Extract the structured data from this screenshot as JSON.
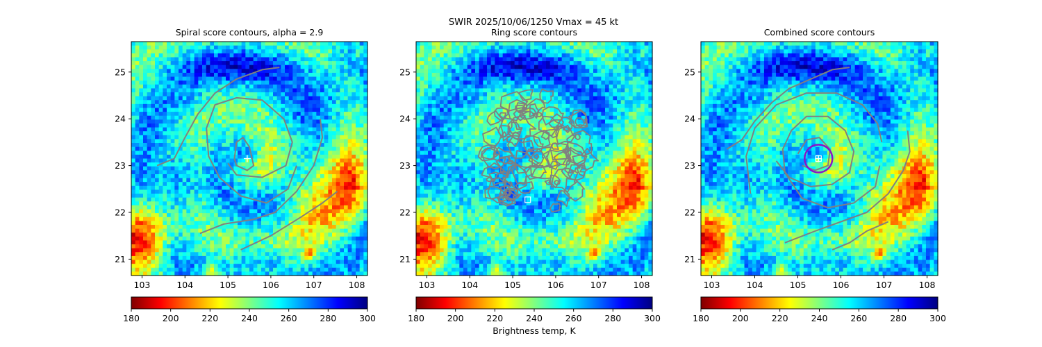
{
  "suptitle": "SWIR  2025/10/06/1250    Vmax = 45 kt",
  "colors": {
    "contour": "#808080",
    "marker": "#ffffff",
    "ring": "#8a14c8"
  },
  "chart_data": [
    {
      "type": "heatmap",
      "title": "Spiral score contours, alpha =  2.9",
      "xlim": [
        102.75,
        108.25
      ],
      "ylim": [
        20.65,
        25.65
      ],
      "xticks": [
        "103",
        "104",
        "105",
        "106",
        "107",
        "108"
      ],
      "yticks": [
        "21",
        "22",
        "23",
        "24",
        "25"
      ],
      "colorbar": {
        "range": [
          180,
          300
        ],
        "ticks": [
          "180",
          "200",
          "220",
          "240",
          "260",
          "280",
          "300"
        ],
        "label": "",
        "cmap": "jet_r"
      },
      "center_marker": {
        "shape": "plus",
        "lon": 105.45,
        "lat": 23.15
      },
      "contours": [
        [
          [
            103.35,
            23.0
          ],
          [
            103.75,
            23.15
          ],
          [
            104.0,
            23.6
          ],
          [
            104.3,
            24.1
          ],
          [
            104.7,
            24.55
          ],
          [
            105.2,
            24.85
          ],
          [
            105.8,
            25.05
          ],
          [
            106.2,
            25.1
          ]
        ],
        [
          [
            105.0,
            23.05
          ],
          [
            105.2,
            22.8
          ],
          [
            105.8,
            22.75
          ],
          [
            106.35,
            23.0
          ],
          [
            106.5,
            23.5
          ],
          [
            106.3,
            24.0
          ],
          [
            105.8,
            24.4
          ],
          [
            105.2,
            24.45
          ],
          [
            104.7,
            24.3
          ],
          [
            104.5,
            23.8
          ],
          [
            104.55,
            23.2
          ],
          [
            104.8,
            22.75
          ],
          [
            105.3,
            22.35
          ],
          [
            105.9,
            22.2
          ],
          [
            106.4,
            22.5
          ],
          [
            106.6,
            23.0
          ]
        ],
        [
          [
            105.15,
            23.15
          ],
          [
            105.2,
            23.5
          ],
          [
            105.35,
            23.6
          ],
          [
            105.5,
            23.4
          ],
          [
            105.6,
            23.0
          ],
          [
            105.45,
            22.9
          ],
          [
            105.2,
            23.0
          ],
          [
            105.15,
            23.15
          ]
        ],
        [
          [
            104.35,
            21.55
          ],
          [
            104.9,
            21.75
          ],
          [
            105.6,
            21.85
          ],
          [
            106.1,
            22.0
          ],
          [
            106.6,
            22.45
          ],
          [
            107.0,
            23.0
          ],
          [
            107.2,
            23.6
          ],
          [
            107.15,
            24.0
          ]
        ],
        [
          [
            105.3,
            21.2
          ],
          [
            106.0,
            21.5
          ],
          [
            106.7,
            21.9
          ],
          [
            107.2,
            22.2
          ],
          [
            107.55,
            22.45
          ]
        ]
      ]
    },
    {
      "type": "heatmap",
      "title": "Ring score contours",
      "xlim": [
        102.75,
        108.25
      ],
      "ylim": [
        20.65,
        25.65
      ],
      "xticks": [
        "103",
        "104",
        "105",
        "106",
        "107",
        "108"
      ],
      "yticks": [
        "21",
        "22",
        "23",
        "24",
        "25"
      ],
      "colorbar": {
        "range": [
          180,
          300
        ],
        "ticks": [
          "180",
          "200",
          "220",
          "240",
          "260",
          "280",
          "300"
        ],
        "label": "Brightness temp, K",
        "cmap": "jet_r"
      },
      "center_marker": {
        "shape": "square",
        "lon": 105.35,
        "lat": 22.27
      },
      "noisy_contour_field": {
        "lon_range": [
          104.15,
          106.85
        ],
        "lat_range": [
          21.95,
          24.6
        ]
      },
      "contours": []
    },
    {
      "type": "heatmap",
      "title": "Combined score contours",
      "xlim": [
        102.75,
        108.25
      ],
      "ylim": [
        20.65,
        25.65
      ],
      "xticks": [
        "103",
        "104",
        "105",
        "106",
        "107",
        "108"
      ],
      "yticks": [
        "21",
        "22",
        "23",
        "24",
        "25"
      ],
      "colorbar": {
        "range": [
          180,
          300
        ],
        "ticks": [
          "180",
          "200",
          "220",
          "240",
          "260",
          "280",
          "300"
        ],
        "label": "",
        "cmap": "jet_r"
      },
      "center_marker": {
        "shape": "plus-square",
        "lon": 105.48,
        "lat": 23.15
      },
      "ring": {
        "lon": 105.48,
        "lat": 23.15
      },
      "contours": [
        [
          [
            103.35,
            23.35
          ],
          [
            103.7,
            23.55
          ],
          [
            104.0,
            23.95
          ],
          [
            104.4,
            24.35
          ],
          [
            104.8,
            24.65
          ],
          [
            105.3,
            24.85
          ],
          [
            105.8,
            25.05
          ],
          [
            106.2,
            25.1
          ]
        ],
        [
          [
            104.5,
            23.1
          ],
          [
            104.8,
            22.75
          ],
          [
            105.3,
            22.55
          ],
          [
            105.8,
            22.6
          ],
          [
            106.2,
            22.85
          ],
          [
            106.3,
            23.3
          ],
          [
            106.1,
            23.75
          ],
          [
            105.7,
            24.05
          ],
          [
            105.2,
            24.05
          ],
          [
            104.85,
            23.75
          ],
          [
            104.65,
            23.35
          ],
          [
            104.7,
            22.85
          ],
          [
            105.1,
            22.3
          ],
          [
            105.7,
            22.1
          ],
          [
            106.3,
            22.2
          ],
          [
            106.8,
            22.55
          ],
          [
            106.9,
            23.0
          ]
        ],
        [
          [
            103.9,
            22.4
          ],
          [
            103.8,
            23.2
          ],
          [
            104.0,
            23.8
          ],
          [
            104.5,
            24.3
          ],
          [
            105.2,
            24.55
          ],
          [
            105.9,
            24.55
          ],
          [
            106.5,
            24.3
          ],
          [
            106.85,
            23.9
          ],
          [
            106.95,
            23.5
          ]
        ],
        [
          [
            105.0,
            23.25
          ],
          [
            105.2,
            23.55
          ],
          [
            105.5,
            23.6
          ],
          [
            105.75,
            23.35
          ],
          [
            105.7,
            23.0
          ],
          [
            105.4,
            22.9
          ],
          [
            105.1,
            23.0
          ]
        ],
        [
          [
            104.7,
            21.35
          ],
          [
            105.4,
            21.6
          ],
          [
            106.0,
            21.8
          ],
          [
            106.6,
            22.0
          ],
          [
            107.1,
            22.4
          ],
          [
            107.45,
            22.9
          ],
          [
            107.6,
            23.3
          ],
          [
            107.55,
            23.75
          ]
        ],
        [
          [
            105.8,
            21.2
          ],
          [
            106.2,
            21.35
          ],
          [
            106.6,
            21.6
          ],
          [
            107.1,
            21.8
          ]
        ]
      ]
    }
  ]
}
